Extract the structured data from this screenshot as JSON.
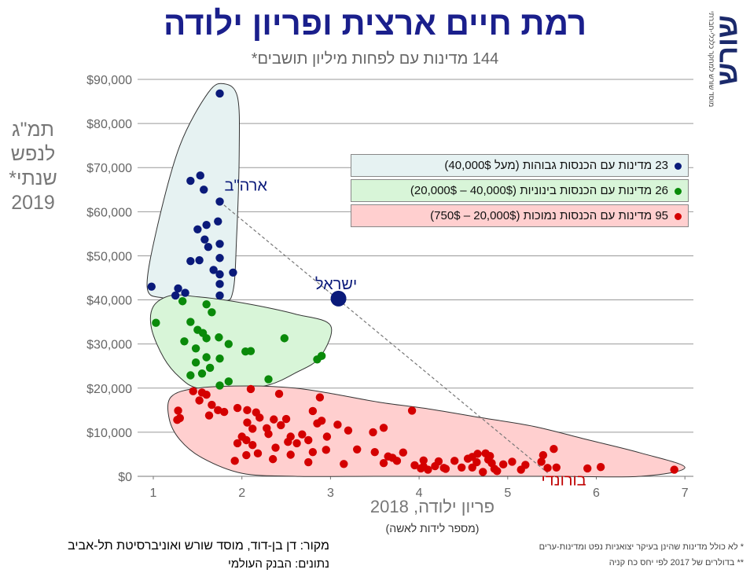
{
  "chart_data": {
    "type": "scatter",
    "title": "רמת חיים ארצית ופריון ילודה",
    "subtitle": "144 מדינות עם לפחות מיליון תושבים*",
    "xlabel": "פריון ילודה, 2018",
    "xsublabel": "(מספר לידות לאשה)",
    "ylabel": "תמ\"ג לנפש שנתי* 2019",
    "xlim": [
      0.9,
      7.1
    ],
    "ylim": [
      0,
      90000
    ],
    "x_ticks": [
      "1",
      "2",
      "3",
      "4",
      "5",
      "6",
      "7"
    ],
    "y_ticks": [
      "$0",
      "$10,000",
      "$20,000",
      "$30,000",
      "$40,000",
      "$50,000",
      "$60,000",
      "$70,000",
      "$80,000",
      "$90,000"
    ],
    "grid": "horizontal",
    "legend_position": "right",
    "series": [
      {
        "name": "23 מדינות עם הכנסות גבוהות (מעל 40,000$)",
        "color": "#0a1a7a",
        "fill": "#e6f2f2",
        "points": [
          [
            1.75,
            86800
          ],
          [
            1.53,
            68200
          ],
          [
            1.42,
            67000
          ],
          [
            1.57,
            65000
          ],
          [
            1.75,
            62300
          ],
          [
            1.73,
            57800
          ],
          [
            1.6,
            57000
          ],
          [
            1.5,
            56000
          ],
          [
            1.58,
            53700
          ],
          [
            1.75,
            52700
          ],
          [
            1.62,
            52000
          ],
          [
            1.52,
            49000
          ],
          [
            1.42,
            48800
          ],
          [
            1.75,
            49500
          ],
          [
            1.68,
            46800
          ],
          [
            1.9,
            46200
          ],
          [
            1.75,
            45800
          ],
          [
            1.75,
            43600
          ],
          [
            1.36,
            41600
          ],
          [
            1.28,
            42600
          ],
          [
            1.25,
            41000
          ],
          [
            1.75,
            41000
          ],
          [
            0.98,
            43000
          ]
        ]
      },
      {
        "name": "26 מדינות עם הכנסות בינוניות (40,000$ – 20,000$)",
        "color": "#0a8a0a",
        "fill": "#d8f5d8",
        "points": [
          [
            1.33,
            39700
          ],
          [
            1.6,
            39000
          ],
          [
            1.66,
            37200
          ],
          [
            1.03,
            34800
          ],
          [
            1.42,
            35000
          ],
          [
            1.5,
            33200
          ],
          [
            1.56,
            32500
          ],
          [
            1.6,
            31300
          ],
          [
            1.74,
            31500
          ],
          [
            1.35,
            30600
          ],
          [
            1.48,
            29000
          ],
          [
            1.85,
            30000
          ],
          [
            2.04,
            28300
          ],
          [
            2.1,
            28400
          ],
          [
            1.6,
            27000
          ],
          [
            1.75,
            26700
          ],
          [
            1.48,
            25800
          ],
          [
            1.64,
            24600
          ],
          [
            1.55,
            23300
          ],
          [
            1.42,
            22900
          ],
          [
            1.85,
            21500
          ],
          [
            2.48,
            31300
          ],
          [
            2.85,
            26500
          ],
          [
            2.9,
            27300
          ],
          [
            2.3,
            22000
          ],
          [
            1.75,
            20600
          ]
        ]
      },
      {
        "name": "95 מדינות עם הכנסות נמוכות (20,000$ – 750$)",
        "color": "#d40000",
        "fill": "#ffcfcf",
        "points": [
          [
            1.45,
            19300
          ],
          [
            1.55,
            19000
          ],
          [
            1.6,
            18500
          ],
          [
            2.1,
            19800
          ],
          [
            2.42,
            18700
          ],
          [
            2.88,
            17900
          ],
          [
            1.52,
            17200
          ],
          [
            1.66,
            16200
          ],
          [
            1.73,
            15000
          ],
          [
            1.8,
            14600
          ],
          [
            1.95,
            15500
          ],
          [
            2.06,
            15000
          ],
          [
            2.16,
            14500
          ],
          [
            1.28,
            14900
          ],
          [
            1.3,
            13200
          ],
          [
            1.27,
            12800
          ],
          [
            1.63,
            13800
          ],
          [
            2.2,
            13300
          ],
          [
            2.36,
            12900
          ],
          [
            2.5,
            13000
          ],
          [
            2.9,
            12600
          ],
          [
            3.08,
            11700
          ],
          [
            3.2,
            10400
          ],
          [
            2.06,
            12200
          ],
          [
            2.12,
            10800
          ],
          [
            2.28,
            10900
          ],
          [
            2.44,
            11600
          ],
          [
            2.8,
            14800
          ],
          [
            2.85,
            12000
          ],
          [
            2.68,
            9500
          ],
          [
            2.55,
            9000
          ],
          [
            2.3,
            9600
          ],
          [
            2.0,
            9000
          ],
          [
            2.05,
            8200
          ],
          [
            2.75,
            8200
          ],
          [
            2.96,
            9000
          ],
          [
            3.6,
            11000
          ],
          [
            3.92,
            14900
          ],
          [
            3.48,
            10000
          ],
          [
            1.95,
            7500
          ],
          [
            2.12,
            7100
          ],
          [
            2.38,
            6500
          ],
          [
            2.52,
            7800
          ],
          [
            2.62,
            7500
          ],
          [
            2.8,
            5500
          ],
          [
            3.5,
            5500
          ],
          [
            3.65,
            4500
          ],
          [
            3.7,
            4200
          ],
          [
            3.75,
            3500
          ],
          [
            4.05,
            3600
          ],
          [
            4.22,
            3400
          ],
          [
            4.05,
            2200
          ],
          [
            4.4,
            3500
          ],
          [
            4.6,
            4400
          ],
          [
            4.66,
            5100
          ],
          [
            4.75,
            5200
          ],
          [
            4.78,
            3800
          ],
          [
            4.82,
            3000
          ],
          [
            4.95,
            2700
          ],
          [
            5.05,
            3300
          ],
          [
            5.2,
            2600
          ],
          [
            5.15,
            1500
          ],
          [
            4.85,
            1700
          ],
          [
            4.6,
            2000
          ],
          [
            4.28,
            1900
          ],
          [
            4.1,
            1500
          ],
          [
            3.82,
            5400
          ],
          [
            3.3,
            6100
          ],
          [
            2.95,
            6000
          ],
          [
            2.55,
            4900
          ],
          [
            2.35,
            3900
          ],
          [
            2.18,
            5200
          ],
          [
            2.05,
            4800
          ],
          [
            1.92,
            3500
          ],
          [
            2.75,
            3200
          ],
          [
            3.15,
            2800
          ],
          [
            3.6,
            3000
          ],
          [
            4.3,
            1700
          ],
          [
            4.48,
            2000
          ],
          [
            4.72,
            1000
          ],
          [
            4.88,
            1200
          ],
          [
            5.45,
            1900
          ],
          [
            5.55,
            2000
          ],
          [
            5.9,
            1800
          ],
          [
            6.05,
            2100
          ],
          [
            6.88,
            1500
          ],
          [
            5.4,
            4800
          ],
          [
            5.52,
            6200
          ],
          [
            4.18,
            2300
          ],
          [
            3.95,
            2500
          ],
          [
            4.02,
            1800
          ],
          [
            4.65,
            3200
          ],
          [
            4.55,
            4000
          ],
          [
            4.8,
            4600
          ],
          [
            5.38,
            3300
          ]
        ]
      }
    ],
    "highlights": [
      {
        "label": "ארה\"ב",
        "x": 1.75,
        "y": 62300,
        "color": "#0a1a7a"
      },
      {
        "label": "ישראל",
        "x": 3.09,
        "y": 40300,
        "color": "#0a1a7a"
      },
      {
        "label": "בורונדי",
        "x": 5.45,
        "y": 800,
        "color": "#c00000"
      }
    ]
  },
  "footer": {
    "source": "מקור:  דן בן-דוד, מוסד שורש ואוניברסיטת תל-אביב",
    "data_source": "נתונים: הבנק העולמי",
    "note1": "* לא כולל מדינות שהינן בעיקר יצואניות נפט ומדינות-ערים",
    "note2": "** בדולרים של 2017 לפי יחס כח קניה"
  },
  "logo": {
    "text": "שורש",
    "caption": "מוסד שורש למחקר כלכלי-חברתי"
  }
}
